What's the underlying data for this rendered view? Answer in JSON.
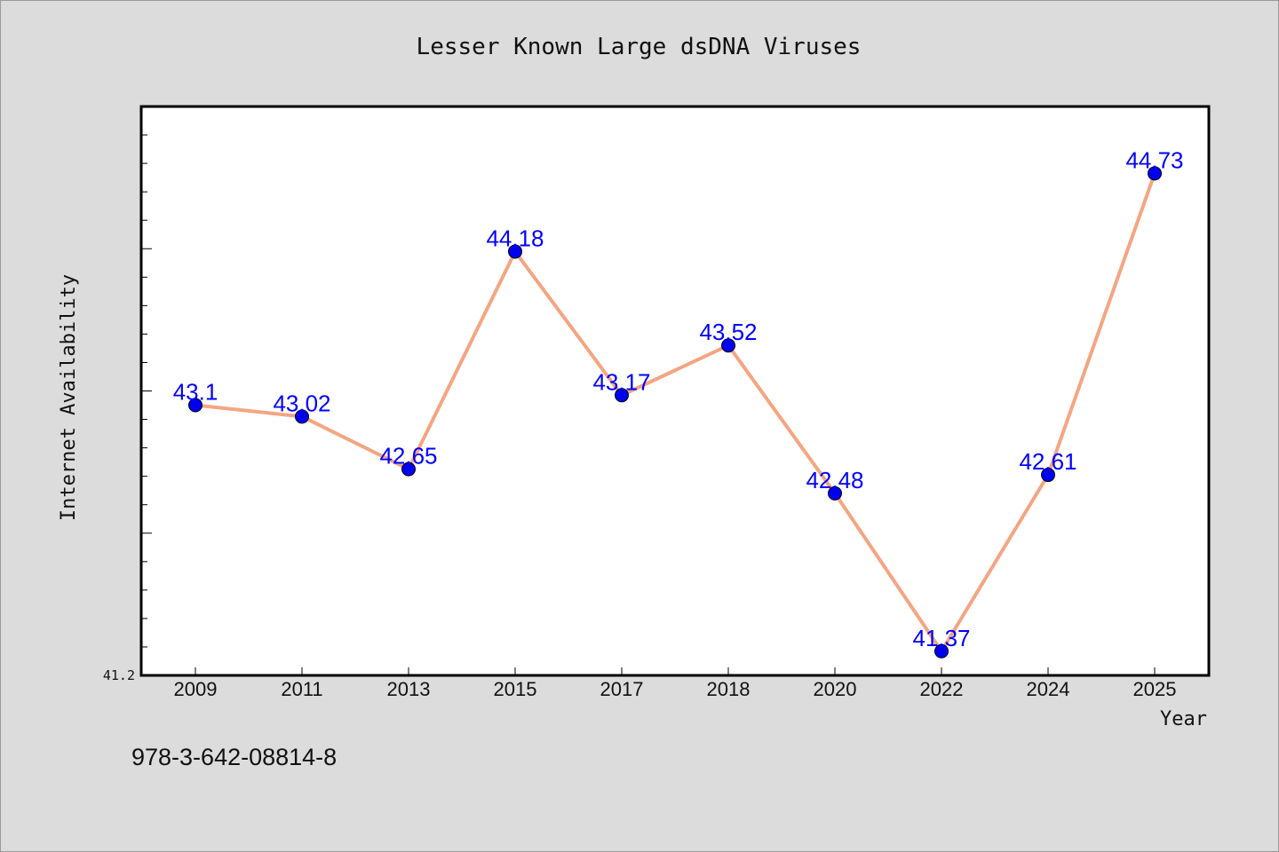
{
  "chart_data": {
    "type": "line",
    "title": "Lesser Known Large dsDNA Viruses",
    "xlabel": "Year",
    "ylabel": "Internet Availability",
    "categories": [
      "2009",
      "2011",
      "2013",
      "2015",
      "2017",
      "2018",
      "2020",
      "2022",
      "2024",
      "2025"
    ],
    "series": [
      {
        "values": [
          43.1,
          43.02,
          42.65,
          44.18,
          43.17,
          43.52,
          42.48,
          41.37,
          42.61,
          44.73
        ],
        "data_labels": [
          "43.1",
          "43.02",
          "42.65",
          "44.18",
          "43.17",
          "43.52",
          "42.48",
          "41.37",
          "42.61",
          "44.73"
        ]
      }
    ],
    "ylim": [
      41.2,
      45.2
    ],
    "yticks_labeled": [
      "41.2"
    ],
    "grid": false,
    "line_color": "#f4a582",
    "marker_color": "#0000ee",
    "label_color": "#0000ff"
  },
  "footer": {
    "isbn": "978-3-642-08814-8"
  },
  "colors": {
    "background": "#dcdcdc",
    "plot_area": "#ffffff"
  }
}
